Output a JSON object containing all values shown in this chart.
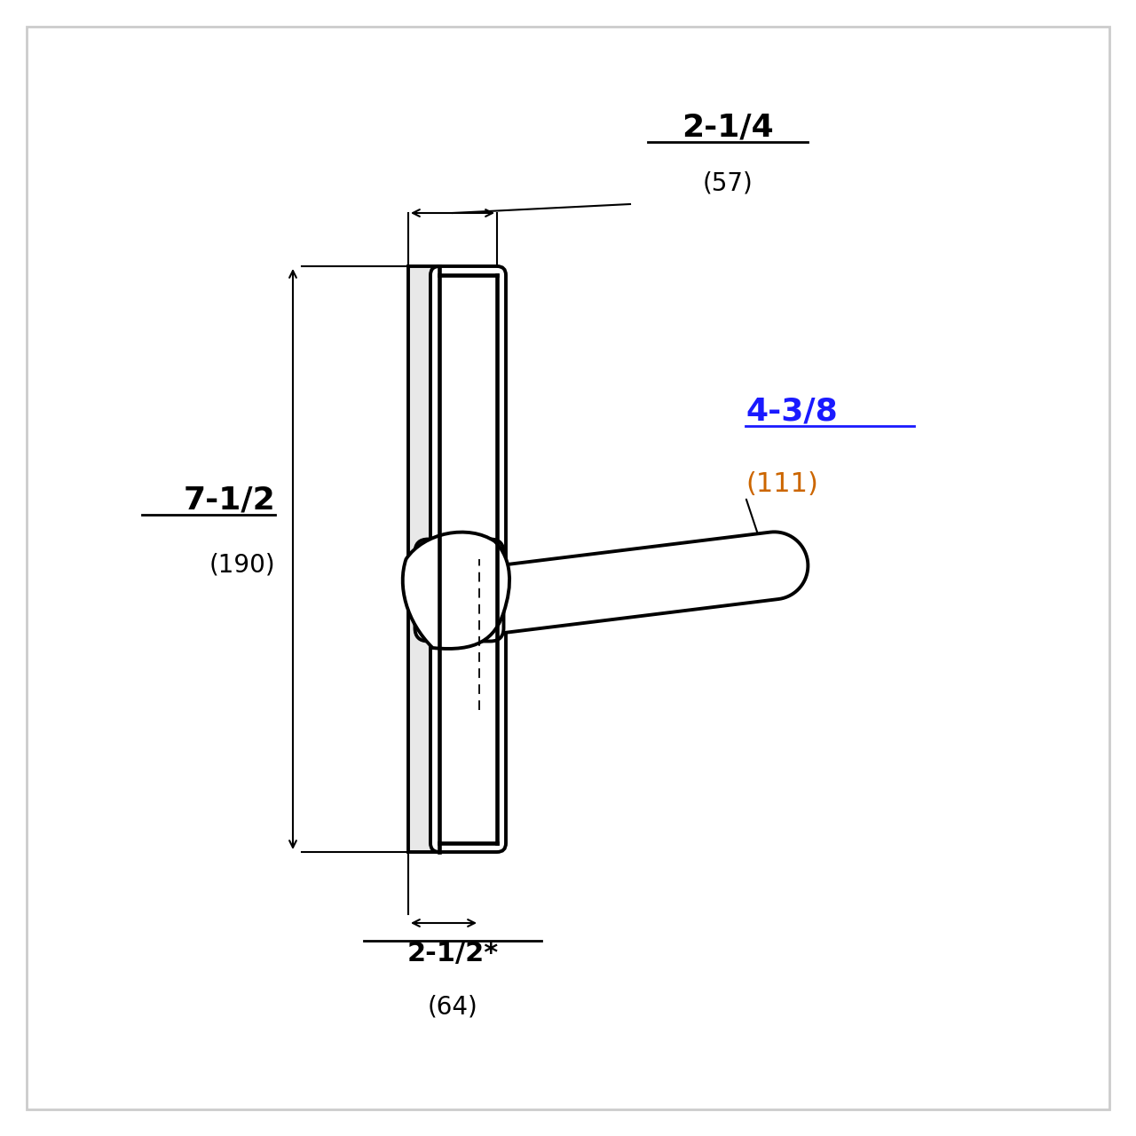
{
  "bg_color": "#ffffff",
  "line_color": "#000000",
  "dim_color_blue": "#1a1aff",
  "dim_color_orange": "#cc6600",
  "fig_size": [
    12.8,
    12.8
  ],
  "dpi": 100,
  "border_color": "#cccccc",
  "annotations": {
    "top_dim_label1": "2-1/4",
    "top_dim_label2": "(57)",
    "left_dim_label1": "7-1/2",
    "left_dim_label2": "(190)",
    "bottom_dim_label1": "2-1/2*",
    "bottom_dim_label2": "(64)",
    "right_dim_label1": "4-3/8",
    "right_dim_label2": "(111)"
  }
}
